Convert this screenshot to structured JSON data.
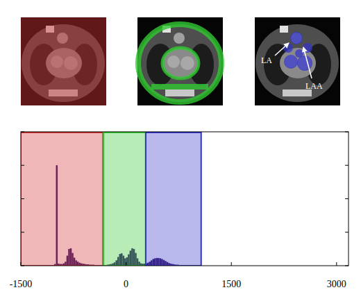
{
  "chart_data": {
    "type": "histogram",
    "color": "#3a1d6e",
    "bins": [
      -1050,
      -1025,
      -1000,
      -975,
      -950,
      -925,
      -900,
      -875,
      -850,
      -825,
      -800,
      -775,
      -750,
      -725,
      -700,
      -675,
      -650,
      -625,
      -600,
      -575,
      -550,
      -525,
      -500,
      -475,
      -450,
      -425,
      -400,
      -375,
      -350,
      -325,
      -300,
      -275,
      -250,
      -225,
      -200,
      -175,
      -150,
      -125,
      -100,
      -75,
      -50,
      -25,
      0,
      25,
      50,
      75,
      100,
      125,
      150,
      175,
      200,
      225,
      250,
      275,
      300,
      325,
      350,
      375,
      400,
      425,
      450,
      475,
      500,
      525,
      550,
      575,
      600,
      625,
      650,
      675,
      700,
      725,
      750,
      775,
      800,
      825,
      850,
      875,
      900,
      925,
      950,
      975,
      1000,
      1025,
      1050
    ],
    "counts": [
      0.01,
      0.05,
      3.0,
      0.06,
      0.05,
      0.05,
      0.07,
      0.12,
      0.3,
      0.5,
      0.52,
      0.38,
      0.24,
      0.16,
      0.12,
      0.09,
      0.07,
      0.06,
      0.05,
      0.04,
      0.04,
      0.03,
      0.03,
      0.03,
      0.02,
      0.02,
      0.02,
      0.02,
      0.02,
      0.02,
      0.02,
      0.03,
      0.04,
      0.05,
      0.07,
      0.1,
      0.16,
      0.26,
      0.35,
      0.37,
      0.3,
      0.22,
      0.25,
      0.34,
      0.45,
      0.52,
      0.5,
      0.38,
      0.22,
      0.12,
      0.07,
      0.06,
      0.06,
      0.07,
      0.09,
      0.12,
      0.16,
      0.2,
      0.22,
      0.23,
      0.23,
      0.22,
      0.2,
      0.17,
      0.14,
      0.11,
      0.08,
      0.06,
      0.05,
      0.04,
      0.03,
      0.03,
      0.02,
      0.02,
      0.02,
      0.02,
      0.01,
      0.01,
      0.01,
      0.01,
      0.01,
      0.01,
      0.01,
      0.01
    ],
    "xlim": [
      -1500,
      3170
    ],
    "xticks": [
      -1500,
      0,
      1500,
      3000
    ],
    "ylim": [
      0,
      4
    ],
    "yticks": [
      0,
      1,
      2,
      3,
      4
    ],
    "tick_labels": "x",
    "regions": [
      {
        "from": -1500,
        "to": -330,
        "color": "#d03030"
      },
      {
        "from": -320,
        "to": 280,
        "color": "#30c830"
      },
      {
        "from": 280,
        "to": 1070,
        "color": "#3434c8"
      }
    ],
    "annotations": [
      {
        "text": "LA"
      },
      {
        "text": "LAA"
      }
    ]
  }
}
